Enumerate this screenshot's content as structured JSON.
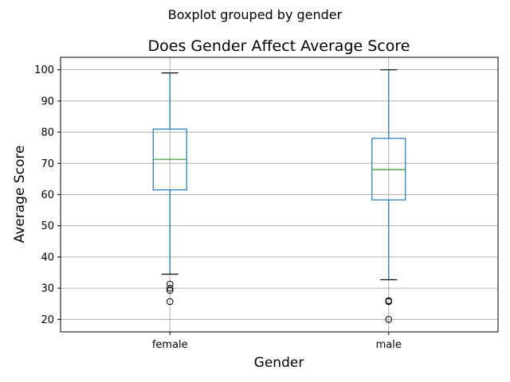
{
  "chart_data": {
    "type": "boxplot",
    "suptitle": "Boxplot grouped by gender",
    "title": "Does Gender Affect Average Score",
    "xlabel": "Gender",
    "ylabel": "Average Score",
    "ylim": [
      16,
      104
    ],
    "yticks": [
      20,
      30,
      40,
      50,
      60,
      70,
      80,
      90,
      100
    ],
    "grid": true,
    "categories": [
      "female",
      "male"
    ],
    "boxes": [
      {
        "name": "female",
        "whisker_low": 34.5,
        "q1": 61.5,
        "median": 71.3,
        "q3": 81.0,
        "whisker_high": 99.0,
        "outliers": [
          31.3,
          30.0,
          29.3,
          25.7
        ]
      },
      {
        "name": "male",
        "whisker_low": 32.7,
        "q1": 58.3,
        "median": 68.0,
        "q3": 78.0,
        "whisker_high": 100.0,
        "outliers": [
          26.0,
          25.7,
          20.0
        ]
      }
    ],
    "colors": {
      "box": "#1f77b4",
      "median": "#2ca02c",
      "grid": "#b0b0b0",
      "flier": "#000000",
      "cap": "#000000"
    }
  }
}
